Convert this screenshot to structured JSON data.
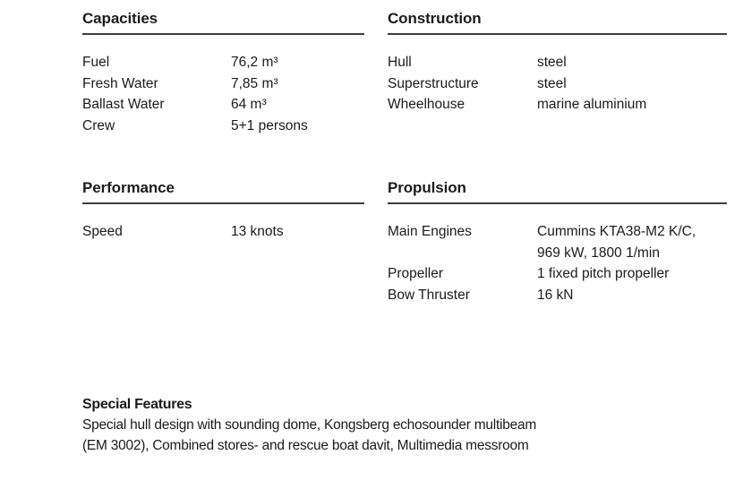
{
  "page": {
    "background": "#ffffff",
    "text_color": "#1b1b1b",
    "rule_color": "#3e3e3e"
  },
  "sections": {
    "capacities": {
      "title": "Capacities",
      "rows": [
        {
          "label": "Fuel",
          "value": "76,2 m³"
        },
        {
          "label": "Fresh Water",
          "value": "7,85 m³"
        },
        {
          "label": "Ballast Water",
          "value": "64 m³"
        },
        {
          "label": "Crew",
          "value": "5+1 persons"
        }
      ]
    },
    "construction": {
      "title": "Construction",
      "rows": [
        {
          "label": "Hull",
          "value": "steel"
        },
        {
          "label": "Superstructure",
          "value": "steel"
        },
        {
          "label": "Wheelhouse",
          "value": "marine aluminium"
        }
      ]
    },
    "performance": {
      "title": "Performance",
      "rows": [
        {
          "label": "Speed",
          "value": "13 knots"
        }
      ]
    },
    "propulsion": {
      "title": "Propulsion",
      "rows": [
        {
          "label": "Main Engines",
          "value": "Cummins KTA38-M2 K/C,\n969 kW, 1800 1/min"
        },
        {
          "label": "Propeller",
          "value": "1 fixed pitch propeller"
        },
        {
          "label": "Bow Thruster",
          "value": "16 kN"
        }
      ]
    },
    "special_features": {
      "title": "Special Features",
      "text": "Special hull design with sounding dome, Kongsberg echosounder multibeam\n(EM 3002), Combined stores- and rescue boat davit, Multimedia messroom"
    }
  }
}
